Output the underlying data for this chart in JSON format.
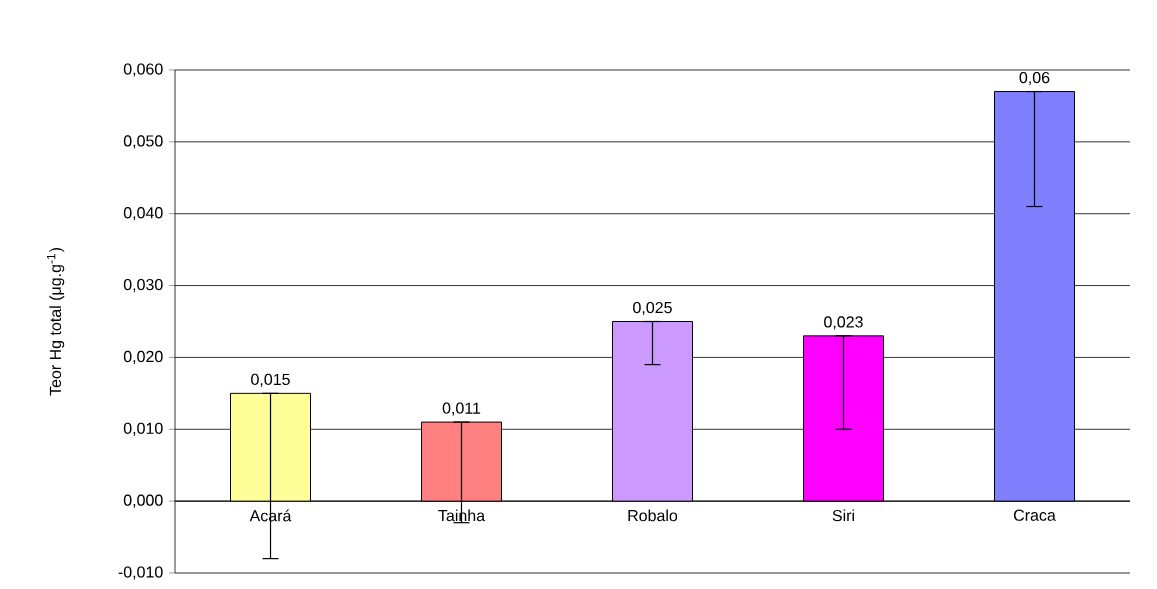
{
  "chart_data": {
    "type": "bar",
    "ylabel": "Teor Hg total (μg.g$^{-1}$)",
    "categories": [
      "Acará",
      "Tainha",
      "Robalo",
      "Siri",
      "Craca"
    ],
    "values": [
      0.015,
      0.011,
      0.025,
      0.023,
      0.057
    ],
    "colors": [
      "#ffff99",
      "#ff8080",
      "#cc99ff",
      "#ff00ff",
      "#8080ff"
    ],
    "errors": [
      [
        -0.008,
        0.015
      ],
      [
        -0.003,
        0.011
      ],
      [
        0.019,
        0.025
      ],
      [
        0.01,
        0.023
      ],
      [
        0.041,
        0.057
      ]
    ],
    "value_labels": [
      "0,015",
      "0,011",
      "0,025",
      "0,023",
      "0,06"
    ],
    "ylim": [
      -0.01,
      0.06
    ],
    "yticks": [
      {
        "value": -0.01,
        "label": "-0,010"
      },
      {
        "value": 0,
        "label": "0,000"
      },
      {
        "value": 0.01,
        "label": "0,010"
      },
      {
        "value": 0.02,
        "label": "0,020"
      },
      {
        "value": 0.03,
        "label": "0,030"
      },
      {
        "value": 0.04,
        "label": "0,040"
      },
      {
        "value": 0.05,
        "label": "0,050"
      },
      {
        "value": 0.06,
        "label": "0,060"
      }
    ],
    "grid": "y"
  }
}
